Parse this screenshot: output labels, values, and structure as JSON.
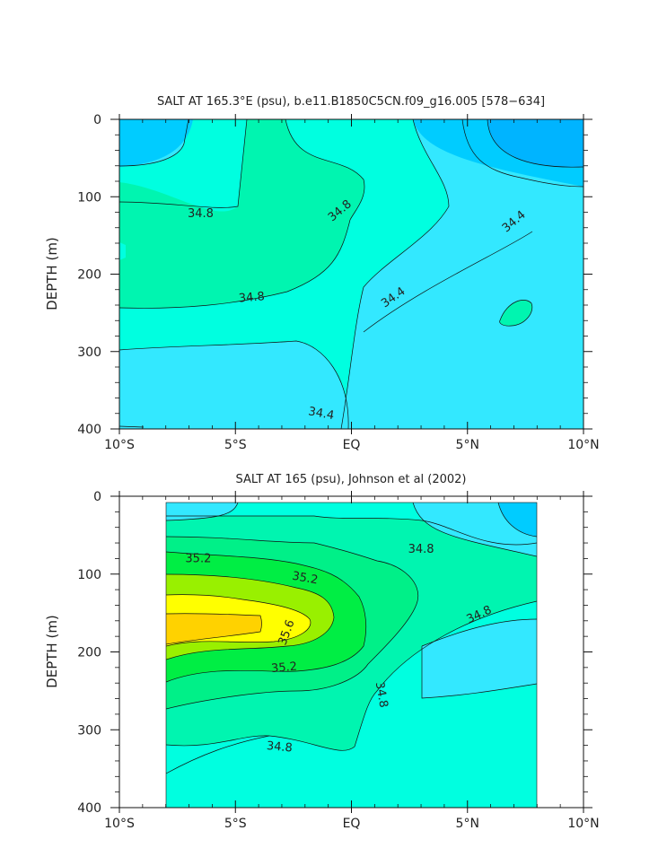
{
  "chart_data": [
    {
      "type": "contour",
      "title": "SALT AT 165.3°E (psu), b.e11.B1850C5CN.f09_g16.005 [578−634]",
      "xlabel": "",
      "ylabel": "DEPTH (m)",
      "xlim": [
        -10,
        10
      ],
      "ylim": [
        400,
        0
      ],
      "x_ticks": [
        -10,
        -5,
        0,
        5,
        10
      ],
      "x_tick_labels": [
        "10°S",
        "5°S",
        "EQ",
        "5°N",
        "10°N"
      ],
      "y_ticks": [
        0,
        100,
        200,
        300,
        400
      ],
      "y_tick_labels": [
        "0",
        "100",
        "200",
        "300",
        "400"
      ],
      "contour_interval": 0.2,
      "fill_levels": [
        {
          "value": 34.0,
          "color": "#00b4ff"
        },
        {
          "value": 34.2,
          "color": "#00ccff"
        },
        {
          "value": 34.4,
          "color": "#33e8ff"
        },
        {
          "value": 34.6,
          "color": "#00ffe0"
        },
        {
          "value": 34.8,
          "color": "#00f5b0"
        }
      ],
      "contour_labels": [
        {
          "text": "34.8",
          "x": -6.5,
          "y": 122,
          "rotation": 0
        },
        {
          "text": "34.8",
          "x": -0.5,
          "y": 118,
          "rotation": -40
        },
        {
          "text": "34.8",
          "x": -4.3,
          "y": 230,
          "rotation": -5
        },
        {
          "text": "34.4",
          "x": 7.0,
          "y": 132,
          "rotation": -40
        },
        {
          "text": "34.4",
          "x": 1.8,
          "y": 230,
          "rotation": -35
        },
        {
          "text": "34.4",
          "x": -1.3,
          "y": 380,
          "rotation": 10
        }
      ]
    },
    {
      "type": "contour",
      "title": "SALT AT 165 (psu), Johnson et al (2002)",
      "xlabel": "",
      "ylabel": "DEPTH (m)",
      "xlim": [
        -10,
        10
      ],
      "ylim": [
        400,
        0
      ],
      "data_xlim": [
        -8,
        8
      ],
      "data_ylim": [
        10,
        400
      ],
      "x_ticks": [
        -10,
        -5,
        0,
        5,
        10
      ],
      "x_tick_labels": [
        "10°S",
        "5°S",
        "EQ",
        "5°N",
        "10°N"
      ],
      "y_ticks": [
        0,
        100,
        200,
        300,
        400
      ],
      "y_tick_labels": [
        "0",
        "100",
        "200",
        "300",
        "400"
      ],
      "contour_interval": 0.2,
      "fill_levels": [
        {
          "value": 34.2,
          "color": "#00ccff"
        },
        {
          "value": 34.4,
          "color": "#33e8ff"
        },
        {
          "value": 34.6,
          "color": "#00ffe0"
        },
        {
          "value": 34.8,
          "color": "#00f5b0"
        },
        {
          "value": 35.0,
          "color": "#00f088"
        },
        {
          "value": 35.2,
          "color": "#00ee44"
        },
        {
          "value": 35.4,
          "color": "#99f000"
        },
        {
          "value": 35.6,
          "color": "#ffff00"
        },
        {
          "value": 35.8,
          "color": "#ffd200"
        }
      ],
      "contour_labels": [
        {
          "text": "35.2",
          "x": -6.6,
          "y": 80,
          "rotation": 0
        },
        {
          "text": "35.2",
          "x": -2.0,
          "y": 105,
          "rotation": 10
        },
        {
          "text": "35.6",
          "x": -2.8,
          "y": 175,
          "rotation": -70
        },
        {
          "text": "35.2",
          "x": -2.9,
          "y": 220,
          "rotation": -5
        },
        {
          "text": "34.8",
          "x": 3.0,
          "y": 68,
          "rotation": 0
        },
        {
          "text": "34.8",
          "x": 5.5,
          "y": 152,
          "rotation": -25
        },
        {
          "text": "34.8",
          "x": 1.3,
          "y": 255,
          "rotation": 80
        },
        {
          "text": "34.8",
          "x": -3.1,
          "y": 322,
          "rotation": 5
        }
      ]
    }
  ]
}
